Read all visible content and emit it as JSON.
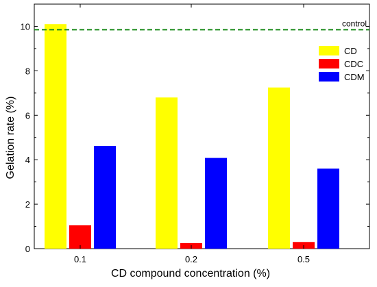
{
  "chart_data": {
    "type": "bar",
    "title": "",
    "xlabel": "CD compound concentration (%)",
    "ylabel": "Gelation rate (%)",
    "categories": [
      "0.1",
      "0.2",
      "0.5"
    ],
    "series": [
      {
        "name": "CD",
        "color": "#ffff00",
        "values": [
          10.1,
          6.8,
          7.25
        ]
      },
      {
        "name": "CDC",
        "color": "#ff0000",
        "values": [
          1.05,
          0.25,
          0.3
        ]
      },
      {
        "name": "CDM",
        "color": "#0000ff",
        "values": [
          4.62,
          4.08,
          3.6
        ]
      }
    ],
    "ylim": [
      0,
      11
    ],
    "yticks": [
      0,
      2,
      4,
      6,
      8,
      10
    ],
    "reference_line": {
      "label": "control",
      "value": 9.85,
      "color": "#1a8a1a",
      "style": "dashed"
    },
    "legend": "top-right",
    "grid": false
  }
}
